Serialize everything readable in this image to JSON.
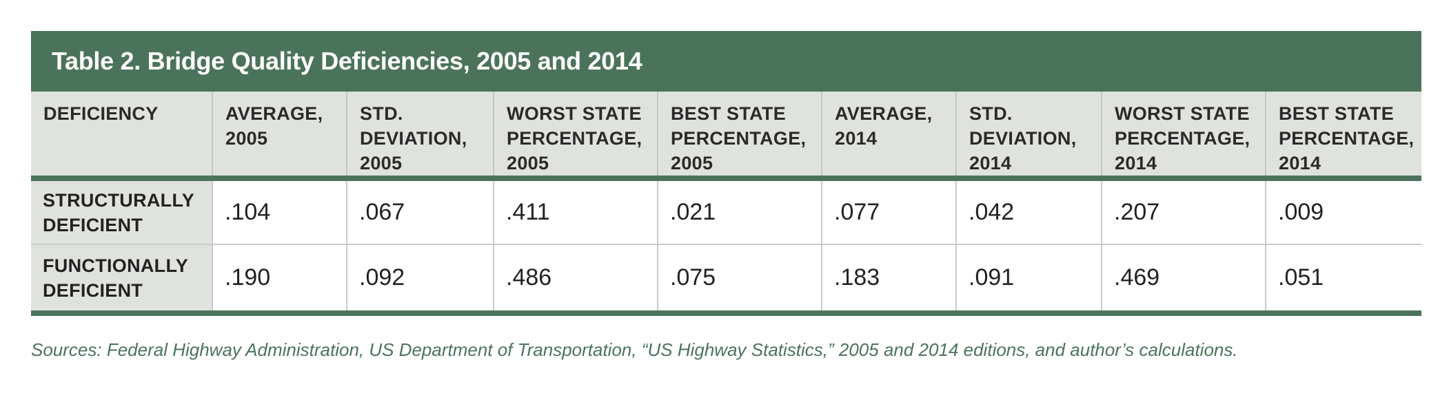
{
  "title": "Table 2. Bridge Quality Deficiencies, 2005 and 2014",
  "columns": [
    [
      "DEFICIENCY"
    ],
    [
      "AVERAGE,",
      "2005"
    ],
    [
      "STD.",
      "DEVIATION,",
      "2005"
    ],
    [
      "WORST STATE",
      "PERCENTAGE,",
      "2005"
    ],
    [
      "BEST STATE",
      "PERCENTAGE,",
      "2005"
    ],
    [
      "AVERAGE,",
      "2014"
    ],
    [
      "STD.",
      "DEVIATION,",
      "2014"
    ],
    [
      "WORST STATE",
      "PERCENTAGE,",
      "2014"
    ],
    [
      "BEST STATE",
      "PERCENTAGE,",
      "2014"
    ]
  ],
  "rows": [
    {
      "label": [
        "STRUCTURALLY",
        "DEFICIENT"
      ],
      "values": [
        ".104",
        ".067",
        ".411",
        ".021",
        ".077",
        ".042",
        ".207",
        ".009"
      ]
    },
    {
      "label": [
        "FUNCTIONALLY",
        "DEFICIENT"
      ],
      "values": [
        ".190",
        ".092",
        ".486",
        ".075",
        ".183",
        ".091",
        ".469",
        ".051"
      ]
    }
  ],
  "source": "Sources: Federal Highway Administration, US Department of Transportation, “US Highway Statistics,” 2005 and 2014 editions, and author’s calculations.",
  "colors": {
    "header_green": "#4b735b",
    "header_gray": "#dfe2dd",
    "source_text": "#4b735b"
  }
}
